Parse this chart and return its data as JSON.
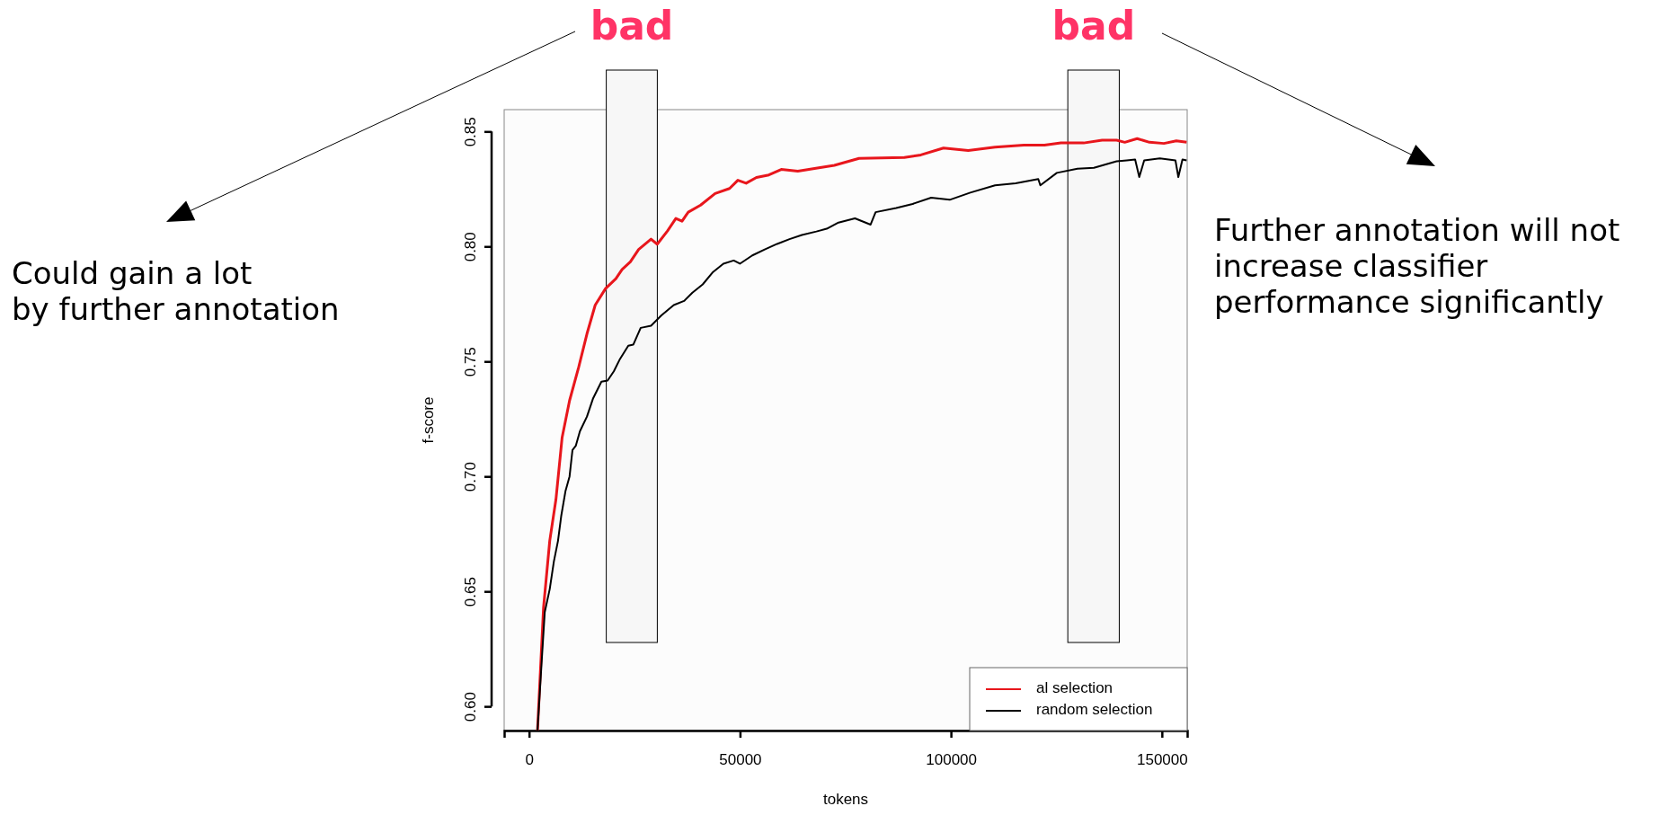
{
  "chart_data": {
    "type": "line",
    "xlabel": "tokens",
    "ylabel": "f-score",
    "xlim": [
      -5900,
      156000
    ],
    "ylim": [
      0.5895,
      0.8595
    ],
    "xticks": [
      0,
      50000,
      100000,
      150000
    ],
    "yticks": [
      {
        "value": 0.6,
        "label": "0.60"
      },
      0.65,
      {
        "value": 0.7,
        "label": "0.70"
      },
      0.75,
      {
        "value": 0.8,
        "label": "0.80"
      },
      0.85
    ],
    "legend": "bottom right",
    "grid": false,
    "bands": [
      {
        "axis": "x",
        "from": 18300,
        "to": 30400,
        "label": "bad",
        "color": "#f7f7f7"
      },
      {
        "axis": "x",
        "from": 127700,
        "to": 139900,
        "label": "bad",
        "color": "#f7f7f7"
      }
    ],
    "annotations": [
      "Could gain a lot\nby further annotation",
      "Further annotation will not\nincrease classifier\nperformance significantly"
    ],
    "series": [
      {
        "name": "al selection",
        "color": "#e8161c",
        "x": [
          2000,
          3430,
          4900,
          6370,
          7840,
          9600,
          11760,
          13720,
          15680,
          18130,
          20580,
          22050,
          24010,
          25970,
          28910,
          30380,
          32830,
          34790,
          36260,
          37730,
          40670,
          44100,
          47530,
          49490,
          51450,
          53900,
          56840,
          59780,
          63700,
          68000,
          72360,
          78220,
          88960,
          92870,
          98240,
          104100,
          110450,
          117290,
          122170,
          126080,
          131450,
          135840,
          139260,
          141210,
          144140,
          147070,
          150490,
          153420,
          155860
        ],
        "values": [
          0.5896,
          0.643,
          0.672,
          0.69,
          0.717,
          0.733,
          0.7475,
          0.762,
          0.7745,
          0.7817,
          0.786,
          0.79,
          0.7933,
          0.7987,
          0.8032,
          0.801,
          0.8068,
          0.8122,
          0.811,
          0.8149,
          0.818,
          0.823,
          0.8252,
          0.8288,
          0.8275,
          0.83,
          0.8311,
          0.8335,
          0.8327,
          0.834,
          0.8353,
          0.8383,
          0.8387,
          0.8398,
          0.8428,
          0.8417,
          0.8432,
          0.8441,
          0.8441,
          0.845,
          0.845,
          0.8462,
          0.8462,
          0.8453,
          0.8469,
          0.8453,
          0.8448,
          0.8459,
          0.8453
        ]
      },
      {
        "name": "random selection",
        "color": "#000000",
        "x": [
          2000,
          2940,
          3720,
          4900,
          5880,
          6860,
          7640,
          8620,
          9600,
          10290,
          11070,
          12050,
          13720,
          15190,
          17150,
          18620,
          20090,
          21560,
          23520,
          24700,
          26460,
          28910,
          31360,
          34300,
          36750,
          38710,
          41160,
          43610,
          46060,
          48510,
          49980,
          52920,
          55860,
          58800,
          61740,
          64680,
          68110,
          70560,
          73340,
          77250,
          80960,
          82140,
          87020,
          90920,
          95310,
          99710,
          104590,
          110450,
          115330,
          120700,
          121190,
          125100,
          129980,
          133890,
          139260,
          141700,
          143660,
          144640,
          145810,
          149510,
          153220,
          153900,
          154880,
          155860
        ],
        "values": [
          0.5896,
          0.618,
          0.641,
          0.651,
          0.663,
          0.672,
          0.683,
          0.6935,
          0.7,
          0.7115,
          0.7133,
          0.7196,
          0.726,
          0.734,
          0.7412,
          0.7417,
          0.7457,
          0.7511,
          0.7568,
          0.7573,
          0.7646,
          0.7655,
          0.77,
          0.7745,
          0.7763,
          0.7799,
          0.7835,
          0.7889,
          0.7925,
          0.7939,
          0.7925,
          0.7961,
          0.7987,
          0.8011,
          0.8032,
          0.805,
          0.8065,
          0.8077,
          0.8104,
          0.8122,
          0.8095,
          0.8149,
          0.8167,
          0.8185,
          0.8212,
          0.8203,
          0.8234,
          0.8266,
          0.8275,
          0.8293,
          0.8266,
          0.832,
          0.8338,
          0.8342,
          0.837,
          0.8374,
          0.8378,
          0.8302,
          0.8374,
          0.8383,
          0.8374,
          0.8302,
          0.8378,
          0.8374
        ]
      }
    ]
  }
}
